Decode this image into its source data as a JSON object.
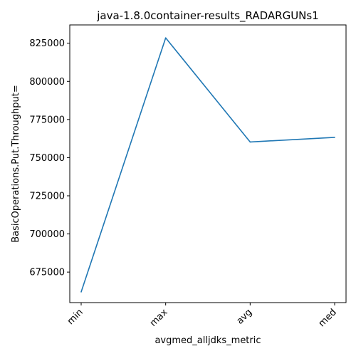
{
  "chart_data": {
    "type": "line",
    "title": "java-1.8.0container-results_RADARGUNs1",
    "xlabel": "avgmed_alljdks_metric",
    "ylabel": "BasicOperations.Put.Throughput=",
    "categories": [
      "min",
      "max",
      "avg",
      "med"
    ],
    "series": [
      {
        "values": [
          662000,
          828500,
          760300,
          763300
        ]
      }
    ],
    "ylim": [
      655000,
      837000
    ],
    "yticks": [
      675000,
      700000,
      725000,
      750000,
      775000,
      800000,
      825000
    ],
    "ytick_labels": [
      "675000",
      "700000",
      "725000",
      "750000",
      "775000",
      "800000",
      "825000"
    ],
    "grid": false,
    "line_color": "#1f77b4"
  }
}
